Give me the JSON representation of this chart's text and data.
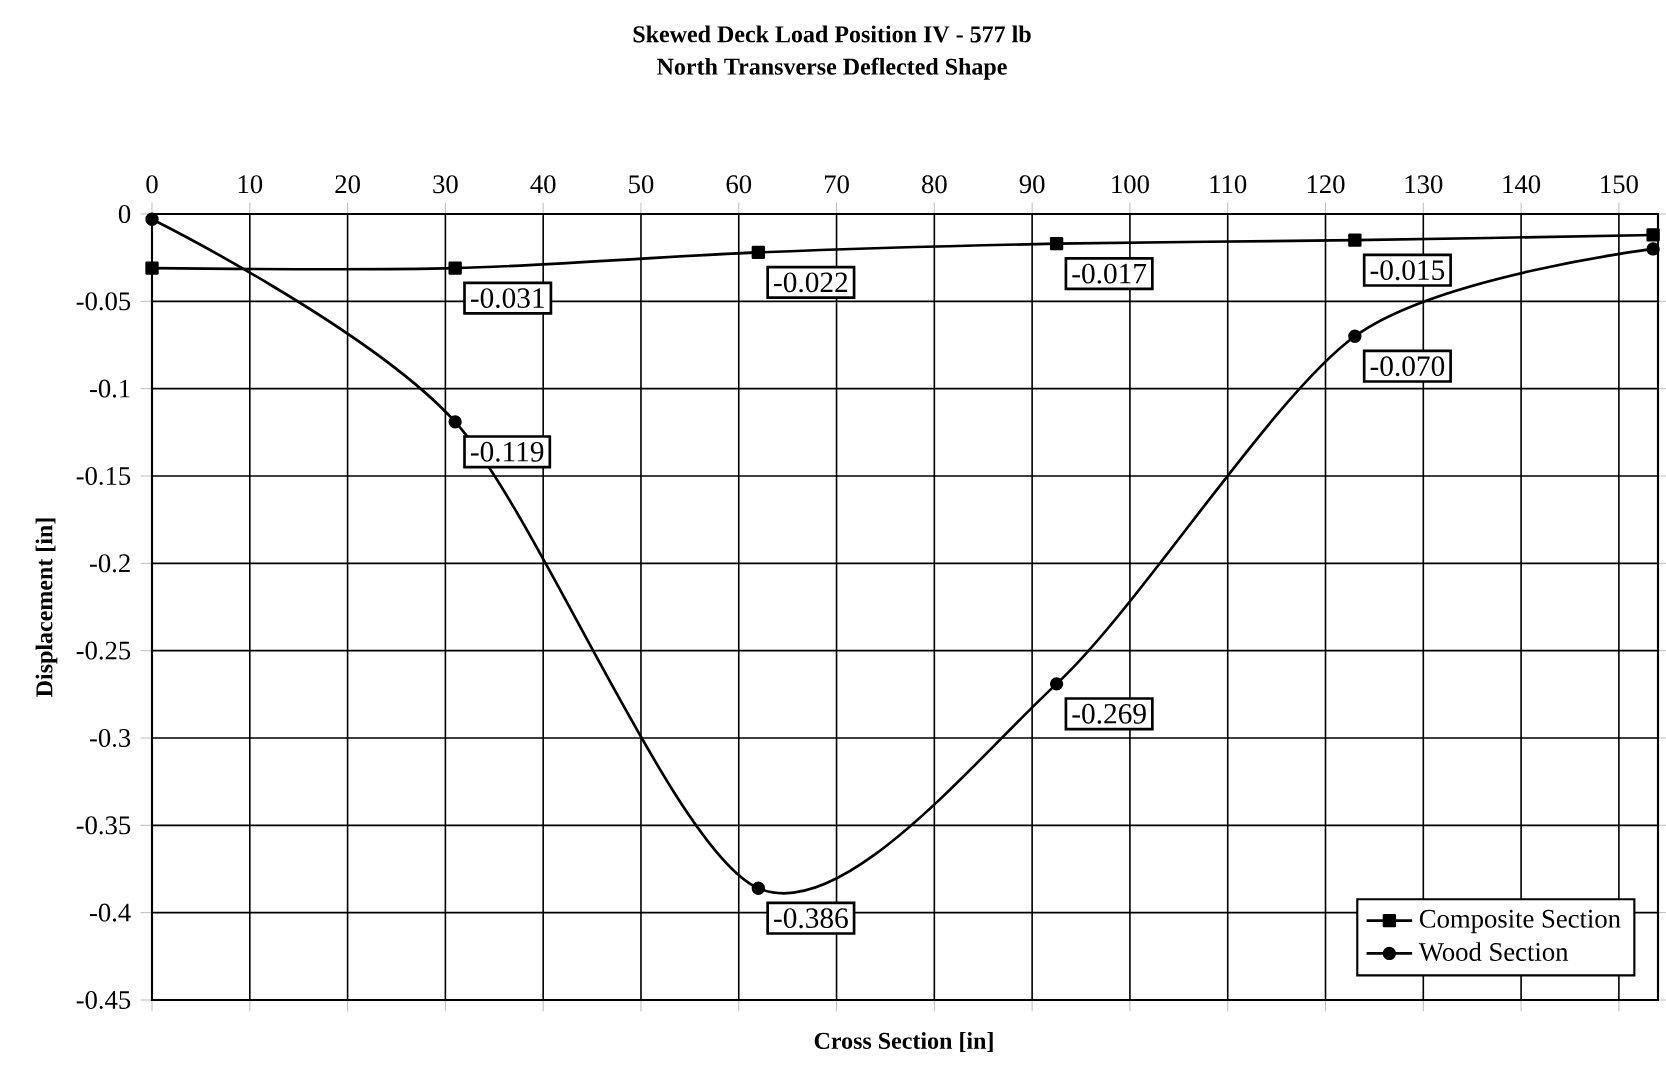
{
  "chart_data": {
    "type": "line",
    "title": "Skewed Deck Load Position IV - 577 lb",
    "subtitle": "North Transverse Deflected Shape",
    "xlabel": "Cross Section [in]",
    "ylabel": "Displacement [in]",
    "xlim": [
      0,
      154
    ],
    "xticks": [
      0,
      10,
      20,
      30,
      40,
      50,
      60,
      70,
      80,
      90,
      100,
      110,
      120,
      130,
      140,
      150
    ],
    "ylim": [
      -0.45,
      0
    ],
    "yticks": [
      {
        "value": 0,
        "label": "0"
      },
      {
        "value": -0.05,
        "label": "-0.05"
      },
      {
        "value": -0.1,
        "label": "-0.1"
      },
      {
        "value": -0.15,
        "label": "-0.15"
      },
      {
        "value": -0.2,
        "label": "-0.2"
      },
      {
        "value": -0.25,
        "label": "-0.25"
      },
      {
        "value": -0.3,
        "label": "-0.3"
      },
      {
        "value": -0.35,
        "label": "-0.35"
      },
      {
        "value": -0.4,
        "label": "-0.4"
      },
      {
        "value": -0.45,
        "label": "-0.45"
      }
    ],
    "grid": true,
    "legend": "bottom right",
    "line_style": "solid",
    "series": [
      {
        "name": "Composite Section",
        "color": "#000000",
        "marker": "square",
        "x": [
          0,
          31,
          62,
          92.5,
          123,
          153.5
        ],
        "values": [
          -0.031,
          -0.031,
          -0.022,
          -0.017,
          -0.015,
          -0.012
        ],
        "value_labels": [
          null,
          "-0.031",
          "-0.022",
          "-0.017",
          "-0.015",
          null
        ]
      },
      {
        "name": "Wood Section",
        "color": "#000000",
        "marker": "circle",
        "x": [
          0,
          31,
          62,
          92.5,
          123,
          153.5
        ],
        "values": [
          -0.003,
          -0.119,
          -0.386,
          -0.269,
          -0.07,
          -0.02
        ],
        "value_labels": [
          null,
          "-0.119",
          "-0.386",
          "-0.269",
          "-0.070",
          null
        ]
      }
    ]
  }
}
